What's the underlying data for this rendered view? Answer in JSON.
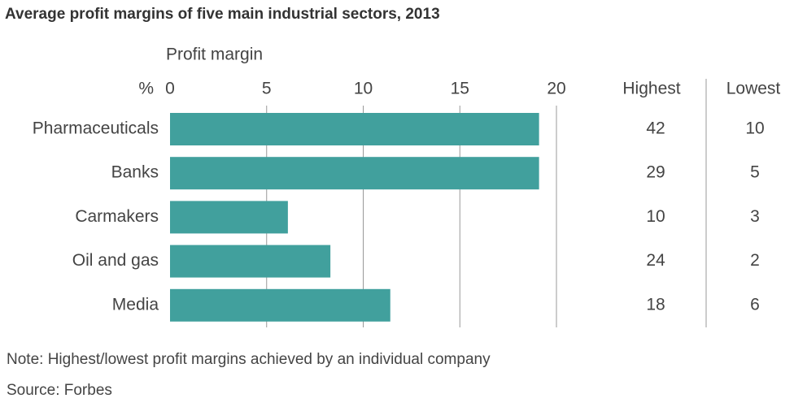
{
  "chart_data": {
    "type": "bar",
    "orientation": "horizontal",
    "title": "Average profit margins of five main industrial sectors, 2013",
    "x_label": "Profit margin",
    "unit_label": "%",
    "categories": [
      "Pharmaceuticals",
      "Banks",
      "Carmakers",
      "Oil and gas",
      "Media"
    ],
    "values": [
      19.1,
      19.1,
      6.1,
      8.3,
      11.4
    ],
    "color": "#41a09d",
    "xlim": [
      0,
      20
    ],
    "xticks": [
      0,
      5,
      10,
      15,
      20
    ],
    "grid": true,
    "columns": [
      {
        "name": "Highest",
        "values": [
          42,
          29,
          10,
          24,
          18
        ]
      },
      {
        "name": "Lowest",
        "values": [
          10,
          5,
          3,
          2,
          6
        ]
      }
    ],
    "note": "Note: Highest/lowest profit margins achieved by an individual company",
    "source": "Source: Forbes"
  }
}
